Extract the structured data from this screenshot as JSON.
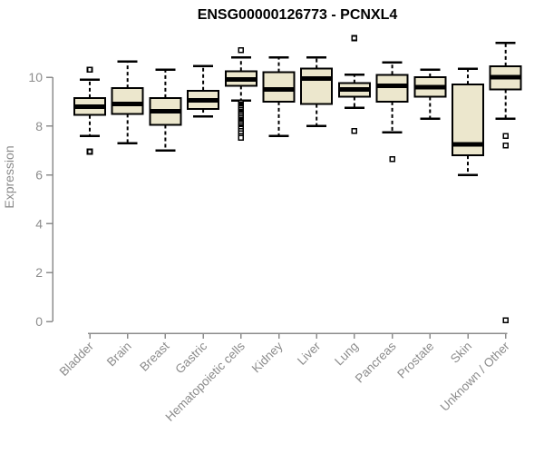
{
  "colors": {
    "background": "#ffffff",
    "title": "#000000",
    "axis": "#8c8c8c",
    "box_fill": "#ECE7CD",
    "box_border": "#000000",
    "median": "#000000",
    "whisker": "#000000",
    "outlier": "#000000"
  },
  "chart_data": {
    "type": "boxplot",
    "title": "ENSG00000126773 - PCNXL4",
    "xlabel": "",
    "ylabel": "Expression",
    "ylim": [
      0,
      11.6
    ],
    "yticks": [
      0,
      2,
      4,
      6,
      8,
      10
    ],
    "grid": false,
    "legend": "none",
    "categories": [
      "Bladder",
      "Brain",
      "Breast",
      "Gastric",
      "Hematopoietic cells",
      "Kidney",
      "Liver",
      "Lung",
      "Pancreas",
      "Prostate",
      "Skin",
      "Unknown / Other"
    ],
    "series": [
      {
        "name": "Bladder",
        "whisker_low": 7.6,
        "q1": 8.45,
        "median": 8.8,
        "q3": 9.15,
        "whisker_high": 9.9,
        "outliers": [
          10.3,
          6.95
        ]
      },
      {
        "name": "Brain",
        "whisker_low": 7.3,
        "q1": 8.5,
        "median": 8.9,
        "q3": 9.55,
        "whisker_high": 10.65,
        "outliers": []
      },
      {
        "name": "Breast",
        "whisker_low": 7.0,
        "q1": 8.05,
        "median": 8.6,
        "q3": 9.15,
        "whisker_high": 10.3,
        "outliers": []
      },
      {
        "name": "Gastric",
        "whisker_low": 8.4,
        "q1": 8.7,
        "median": 9.05,
        "q3": 9.45,
        "whisker_high": 10.45,
        "outliers": []
      },
      {
        "name": "Hematopoietic cells",
        "whisker_low": 9.05,
        "q1": 9.65,
        "median": 9.9,
        "q3": 10.25,
        "whisker_high": 10.8,
        "outliers": [
          11.1,
          8.95,
          8.88,
          8.81,
          8.74,
          8.67,
          8.6,
          8.53,
          8.46,
          8.39,
          8.32,
          8.25,
          8.18,
          8.11,
          8.04,
          7.97,
          7.9,
          7.8,
          7.7,
          7.6,
          7.52
        ]
      },
      {
        "name": "Kidney",
        "whisker_low": 7.6,
        "q1": 9.0,
        "median": 9.5,
        "q3": 10.2,
        "whisker_high": 10.8,
        "outliers": []
      },
      {
        "name": "Liver",
        "whisker_low": 8.0,
        "q1": 8.9,
        "median": 9.95,
        "q3": 10.35,
        "whisker_high": 10.8,
        "outliers": []
      },
      {
        "name": "Lung",
        "whisker_low": 8.75,
        "q1": 9.2,
        "median": 9.5,
        "q3": 9.75,
        "whisker_high": 10.1,
        "outliers": [
          11.6,
          7.8
        ]
      },
      {
        "name": "Pancreas",
        "whisker_low": 7.75,
        "q1": 9.0,
        "median": 9.65,
        "q3": 10.1,
        "whisker_high": 10.6,
        "outliers": [
          6.65
        ]
      },
      {
        "name": "Prostate",
        "whisker_low": 8.3,
        "q1": 9.2,
        "median": 9.6,
        "q3": 10.0,
        "whisker_high": 10.3,
        "outliers": []
      },
      {
        "name": "Skin",
        "whisker_low": 6.0,
        "q1": 6.8,
        "median": 7.25,
        "q3": 9.7,
        "whisker_high": 10.35,
        "outliers": []
      },
      {
        "name": "Unknown / Other",
        "whisker_low": 8.3,
        "q1": 9.5,
        "median": 10.0,
        "q3": 10.45,
        "whisker_high": 11.4,
        "outliers": [
          7.6,
          7.2,
          0.05
        ]
      }
    ]
  }
}
